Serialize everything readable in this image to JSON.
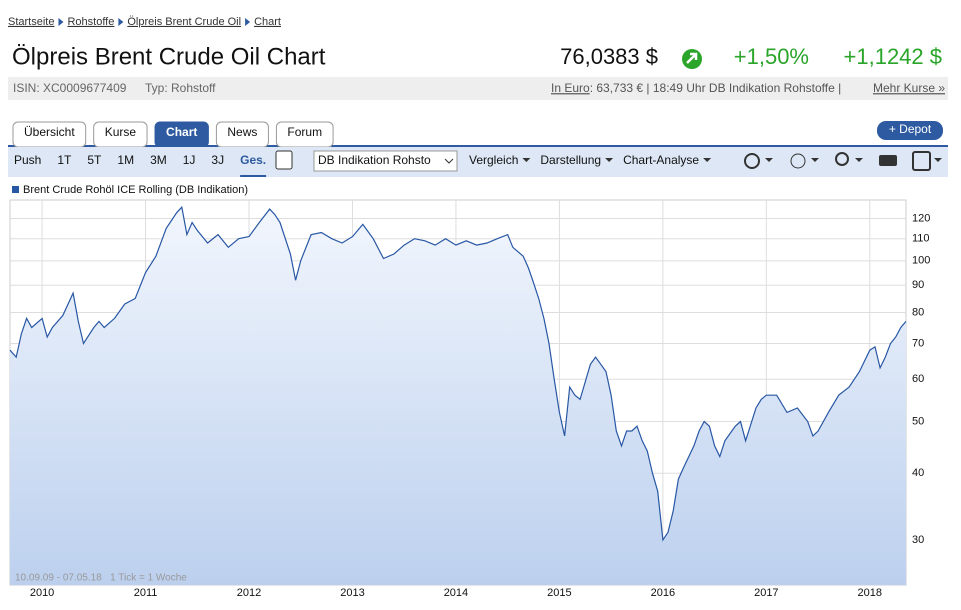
{
  "breadcrumb": [
    "Startseite",
    "Rohstoffe",
    "Ölpreis Brent Crude Oil",
    "Chart"
  ],
  "header": {
    "title": "Ölpreis Brent Crude Oil Chart",
    "price": "76,0383 $",
    "change_pct": "+1,50%",
    "change_abs": "+1,1242 $",
    "isin": "ISIN: XC0009677409",
    "type": "Typ: Rohstoff",
    "euro_link": "In Euro",
    "euro_info": ": 63,733 € | 18:49 Uhr DB Indikation Rohstoffe |",
    "more_link": "Mehr Kurse »"
  },
  "tabs": [
    "Übersicht",
    "Kurse",
    "Chart",
    "News",
    "Forum"
  ],
  "depot_button": "+ Depot",
  "toolbar": {
    "ranges": [
      "Push",
      "1T",
      "5T",
      "1M",
      "3M",
      "1J",
      "3J",
      "Ges."
    ],
    "source_select": "DB Indikation Rohsto",
    "menus": [
      "Vergleich",
      "Darstellung",
      "Chart-Analyse"
    ]
  },
  "chart_data": {
    "type": "line",
    "log_scale": true,
    "grid": true,
    "footnote": "10.09.09 - 07.05.18   1 Tick = 1 Woche",
    "x": [
      2009.69,
      2009.75,
      2009.8,
      2009.85,
      2009.9,
      2010.0,
      2010.05,
      2010.1,
      2010.2,
      2010.3,
      2010.35,
      2010.4,
      2010.5,
      2010.55,
      2010.6,
      2010.7,
      2010.8,
      2010.9,
      2011.0,
      2011.1,
      2011.2,
      2011.3,
      2011.35,
      2011.4,
      2011.45,
      2011.5,
      2011.6,
      2011.7,
      2011.8,
      2011.9,
      2012.0,
      2012.1,
      2012.2,
      2012.25,
      2012.3,
      2012.4,
      2012.45,
      2012.5,
      2012.6,
      2012.7,
      2012.8,
      2012.9,
      2013.0,
      2013.1,
      2013.2,
      2013.3,
      2013.4,
      2013.5,
      2013.6,
      2013.7,
      2013.8,
      2013.9,
      2014.0,
      2014.1,
      2014.2,
      2014.3,
      2014.4,
      2014.5,
      2014.55,
      2014.65,
      2014.7,
      2014.75,
      2014.8,
      2014.85,
      2014.9,
      2014.95,
      2015.0,
      2015.05,
      2015.1,
      2015.15,
      2015.2,
      2015.3,
      2015.35,
      2015.4,
      2015.45,
      2015.5,
      2015.55,
      2015.6,
      2015.65,
      2015.7,
      2015.75,
      2015.8,
      2015.85,
      2015.9,
      2015.95,
      2016.0,
      2016.05,
      2016.1,
      2016.15,
      2016.2,
      2016.3,
      2016.35,
      2016.4,
      2016.45,
      2016.5,
      2016.55,
      2016.6,
      2016.7,
      2016.75,
      2016.8,
      2016.9,
      2016.95,
      2017.0,
      2017.1,
      2017.2,
      2017.3,
      2017.4,
      2017.45,
      2017.5,
      2017.6,
      2017.7,
      2017.8,
      2017.9,
      2018.0,
      2018.05,
      2018.1,
      2018.15,
      2018.2,
      2018.25,
      2018.3,
      2018.35
    ],
    "series": [
      {
        "name": "Brent Crude Rohöl ICE Rolling (DB Indikation)",
        "color": "#2857a4",
        "values": [
          68,
          66,
          73,
          78,
          75,
          78,
          72,
          75,
          79,
          87,
          77,
          70,
          75,
          77,
          75,
          78,
          83,
          85,
          95,
          102,
          115,
          123,
          126,
          112,
          118,
          114,
          108,
          112,
          106,
          110,
          111,
          118,
          125,
          122,
          118,
          103,
          92,
          100,
          112,
          113,
          110,
          108,
          111,
          117,
          110,
          101,
          103,
          107,
          110,
          109,
          107,
          110,
          107,
          109,
          107,
          108,
          110,
          112,
          106,
          102,
          97,
          91,
          85,
          78,
          70,
          60,
          52,
          47,
          58,
          56,
          55,
          64,
          66,
          64,
          62,
          56,
          48,
          45,
          48,
          48,
          49,
          46,
          44,
          40,
          37,
          30,
          31,
          34,
          39,
          41,
          45,
          48,
          50,
          49,
          45,
          43,
          46,
          49,
          50,
          46,
          53,
          55,
          56,
          56,
          52,
          53,
          50,
          47,
          48,
          52,
          56,
          58,
          62,
          68,
          69,
          63,
          66,
          70,
          72,
          75,
          77
        ]
      }
    ],
    "xlim": [
      2009.69,
      2018.35
    ],
    "xticks": [
      2010,
      2011,
      2012,
      2013,
      2014,
      2015,
      2016,
      2017,
      2018
    ],
    "ylim": [
      24.7,
      130
    ],
    "yticks": [
      30,
      40,
      50,
      60,
      70,
      80,
      90,
      100,
      110,
      120
    ]
  }
}
